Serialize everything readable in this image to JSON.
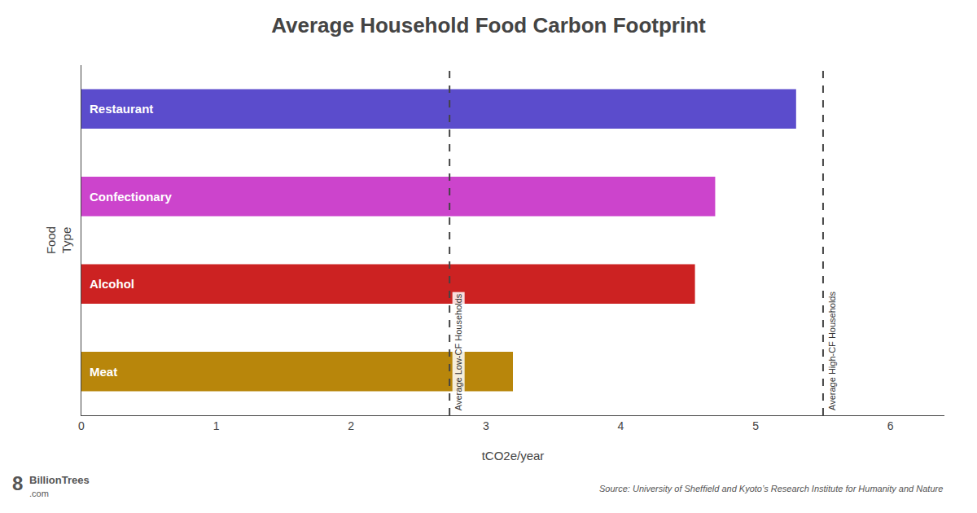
{
  "chart_data": {
    "type": "bar",
    "orientation": "horizontal",
    "title": "Average Household Food Carbon Footprint",
    "categories": [
      "Meat",
      "Alcohol",
      "Confectionary",
      "Restaurant"
    ],
    "values": [
      3.2,
      4.55,
      4.7,
      5.3
    ],
    "colors": [
      "#B8860B",
      "#CC2222",
      "#CC44CC",
      "#5B4CCC"
    ],
    "xlabel": "tCO2e/year",
    "ylabel": "Food\nType",
    "xlim": [
      0,
      6.4
    ],
    "xticks": [
      0,
      1,
      2,
      3,
      4,
      5,
      6
    ],
    "tick_labels": "x",
    "grid": false,
    "vlines": [
      {
        "x": 2.73,
        "label": "Average Low-CF Households"
      },
      {
        "x": 5.5,
        "label": "Average High-CF Households"
      }
    ],
    "source": "Source: University of Sheffield and Kyoto’s Research Institute for Humanity and Nature",
    "logo": [
      "8",
      "BillionTrees",
      ".com"
    ]
  }
}
